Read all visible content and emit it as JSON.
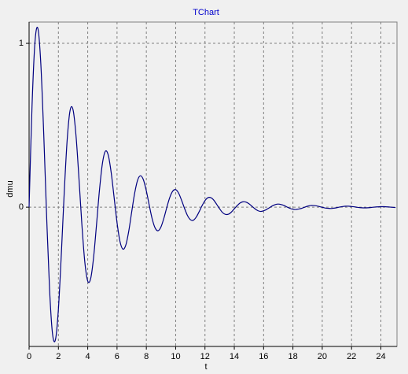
{
  "chart_data": {
    "type": "line",
    "title": "TChart",
    "x_label": "t",
    "y_label": "dmu",
    "xlim": [
      0,
      25.1
    ],
    "ylim": [
      -0.85,
      1.13
    ],
    "xticks": [
      0,
      2,
      4,
      6,
      8,
      10,
      12,
      14,
      16,
      18,
      20,
      22,
      24
    ],
    "yticks": [
      0,
      1
    ],
    "grid": true,
    "x": [
      0,
      0.2,
      0.4,
      0.6,
      0.8,
      1.0,
      1.2,
      1.4,
      1.6,
      1.8,
      2.0,
      2.2,
      2.4,
      2.6,
      2.8,
      3.0,
      3.2,
      3.4,
      3.6,
      3.8,
      4.0,
      4.2,
      4.4,
      4.6,
      4.8,
      5.0,
      5.2,
      5.4,
      5.6,
      5.8,
      6.0,
      6.2,
      6.4,
      6.6,
      6.8,
      7.0,
      7.2,
      7.4,
      7.6,
      7.8,
      8.0,
      8.2,
      8.4,
      8.6,
      8.8,
      9.0,
      9.2,
      9.4,
      9.6,
      9.8,
      10.0,
      10.2,
      10.4,
      10.6,
      10.8,
      11.0,
      11.2,
      11.4,
      11.6,
      11.8,
      12.0,
      12.2,
      12.4,
      12.6,
      12.8,
      13.0,
      13.2,
      13.4,
      13.6,
      13.8,
      14.0,
      14.2,
      14.4,
      14.6,
      14.8,
      15.0,
      15.2,
      15.4,
      15.6,
      15.8,
      16.0,
      16.2,
      16.4,
      16.6,
      16.8,
      17.0,
      17.2,
      17.4,
      17.6,
      17.8,
      18.0,
      18.2,
      18.4,
      18.6,
      18.8,
      19.0,
      19.2,
      19.4,
      19.6,
      19.8,
      20.0,
      20.2,
      20.4,
      20.6,
      20.8,
      21.0,
      21.2,
      21.4,
      21.6,
      21.8,
      22.0,
      22.2,
      22.4,
      22.6,
      22.8,
      23.0,
      23.2,
      23.4,
      23.6,
      23.8,
      24.0,
      24.2,
      24.4,
      24.6,
      24.8,
      25.0
    ],
    "series": [
      {
        "name": "dmu",
        "color": "#000080",
        "values": [
          0,
          0.614,
          1.006,
          1.091,
          0.876,
          0.445,
          -0.063,
          -0.507,
          -0.774,
          -0.808,
          -0.622,
          -0.286,
          0.094,
          0.413,
          0.592,
          0.594,
          0.438,
          0.179,
          -0.104,
          -0.333,
          -0.451,
          -0.436,
          -0.307,
          -0.107,
          0.103,
          0.265,
          0.341,
          0.318,
          0.212,
          0.06,
          -0.094,
          -0.209,
          -0.256,
          -0.231,
          -0.146,
          -0.029,
          0.084,
          0.164,
          0.192,
          0.167,
          0.099,
          0.011,
          -0.072,
          -0.127,
          -0.144,
          -0.12,
          -0.066,
          0.0,
          0.06,
          0.098,
          0.107,
          0.086,
          0.043,
          -0.006,
          -0.05,
          -0.076,
          -0.08,
          -0.061,
          -0.028,
          0.009,
          0.04,
          0.058,
          0.058,
          0.043,
          0.017,
          -0.01,
          -0.033,
          -0.044,
          -0.043,
          -0.03,
          -0.01,
          0.01,
          0.026,
          0.033,
          0.031,
          0.021,
          0.006,
          -0.009,
          -0.021,
          -0.026,
          -0.022,
          -0.014,
          -0.003,
          0.008,
          0.016,
          0.019,
          0.016,
          0.01,
          0.001,
          -0.007,
          -0.013,
          -0.014,
          -0.011,
          -0.007,
          0.0,
          0.006,
          0.01,
          0.01,
          0.008,
          0.004,
          -0.001,
          -0.005,
          -0.007,
          -0.008,
          -0.006,
          -0.003,
          0.001,
          0.004,
          0.006,
          0.006,
          0.004,
          0.002,
          -0.001,
          -0.003,
          -0.004,
          -0.004,
          -0.003,
          -0.001,
          0.001,
          0.002,
          0.003,
          0.003,
          0.002,
          0.001,
          -0.001,
          -0.002
        ]
      }
    ]
  }
}
